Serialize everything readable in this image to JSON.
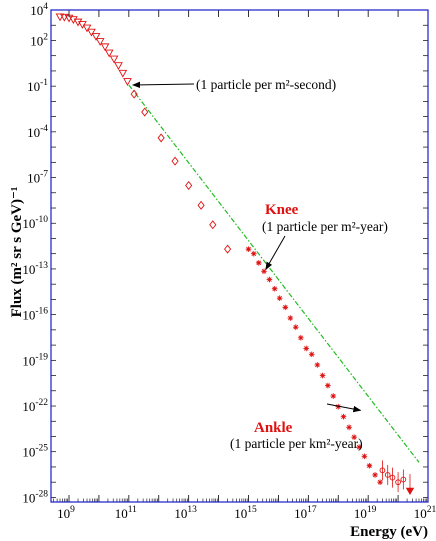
{
  "chart_data": {
    "type": "scatter",
    "title": "",
    "xlabel": "Energy (eV)",
    "ylabel": "Flux (m² sr s GeV)⁻¹",
    "x_scale": "log",
    "y_scale": "log",
    "xlim": [
      250000000.0,
      1e+21
    ],
    "ylim": [
      5e-29,
      10000.0
    ],
    "grid": false,
    "colors": {
      "frame": "#1a1acc",
      "data": "#e01010",
      "fit": "#22bb22",
      "arrow": "#000000"
    },
    "x_ticks": [
      {
        "base": "10",
        "exp": "9",
        "value": 1000000000.0
      },
      {
        "base": "10",
        "exp": "11",
        "value": 100000000000.0
      },
      {
        "base": "10",
        "exp": "13",
        "value": 10000000000000.0
      },
      {
        "base": "10",
        "exp": "15",
        "value": 1000000000000000.0
      },
      {
        "base": "10",
        "exp": "17",
        "value": 1e+17
      },
      {
        "base": "10",
        "exp": "19",
        "value": 1e+19
      },
      {
        "base": "10",
        "exp": "21",
        "value": 1e+21
      }
    ],
    "y_ticks": [
      {
        "base": "10",
        "exp": "4",
        "value": 10000.0
      },
      {
        "base": "10",
        "exp": "2",
        "value": 100.0
      },
      {
        "base": "10",
        "exp": "-1",
        "value": 0.1
      },
      {
        "base": "10",
        "exp": "-4",
        "value": 0.0001
      },
      {
        "base": "10",
        "exp": "-7",
        "value": 1e-07
      },
      {
        "base": "10",
        "exp": "-10",
        "value": 1e-10
      },
      {
        "base": "10",
        "exp": "-13",
        "value": 1e-13
      },
      {
        "base": "10",
        "exp": "-16",
        "value": 1e-16
      },
      {
        "base": "10",
        "exp": "-19",
        "value": 1e-19
      },
      {
        "base": "10",
        "exp": "-22",
        "value": 1e-22
      },
      {
        "base": "10",
        "exp": "-25",
        "value": 1e-25
      },
      {
        "base": "10",
        "exp": "-28",
        "value": 1e-28
      }
    ],
    "fit_line": {
      "x": [
        100000000000.0,
        5e+20
      ],
      "y": [
        0.12,
        2e-26
      ]
    },
    "series": [
      {
        "marker": "triangle-down",
        "x": [
          500000000.0,
          700000000.0,
          1000000000.0,
          1400000000.0,
          2000000000.0,
          2800000000.0,
          4000000000.0,
          5600000000.0,
          8000000000.0,
          11000000000.0,
          16000000000.0,
          22000000000.0,
          32000000000.0,
          45000000000.0,
          63000000000.0,
          90000000000.0
        ],
        "y": [
          3500,
          3300,
          2900,
          2300,
          1600,
          1100,
          650,
          350,
          180,
          85,
          38,
          15,
          6,
          2.2,
          0.7,
          0.2
        ]
      },
      {
        "marker": "diamond",
        "x": [
          150000000000.0,
          340000000000.0,
          1200000000000.0,
          3500000000000.0,
          10000000000000.0,
          26000000000000.0,
          64000000000000.0,
          200000000000000.0
        ],
        "y": [
          0.03,
          0.002,
          4e-05,
          1.2e-06,
          3e-08,
          1.5e-09,
          8e-11,
          2e-12
        ]
      },
      {
        "marker": "star",
        "x": [
          1000000000000000.0,
          1500000000000000.0,
          2200000000000000.0,
          3300000000000000.0,
          5000000000000000.0,
          7500000000000000.0,
          1.1e+16,
          1.7e+16,
          2.5e+16,
          3.8e+16,
          5.6e+16,
          8.5e+16,
          1.3e+17,
          2e+17,
          3e+17,
          4.5e+17,
          6.8e+17,
          1e+18,
          1.5e+18,
          2.3e+18,
          3.4e+18,
          5e+18,
          7.5e+18,
          1.1e+19,
          1.7e+19,
          2.5e+19
        ],
        "y": [
          2e-12,
          1e-12,
          2.5e-13,
          7e-14,
          2e-14,
          5e-15,
          1.2e-15,
          3e-16,
          6e-17,
          1.5e-17,
          3e-18,
          6e-19,
          2.5e-19,
          5e-20,
          1e-20,
          2.2e-21,
          4.5e-22,
          9e-23,
          2e-23,
          4e-24,
          9e-25,
          2e-25,
          5e-26,
          1.2e-26,
          3e-27,
          1e-27
        ]
      },
      {
        "marker": "circle",
        "x": [
          3e+19,
          4.5e+19,
          6.5e+19,
          1e+20,
          1.5e+20
        ],
        "y": [
          6e-27,
          3e-27,
          2e-27,
          1e-27,
          1.5e-27
        ]
      },
      {
        "marker": "triangle-down-filled",
        "x": [
          2.5e+20
        ],
        "y": [
          3e-28
        ]
      }
    ],
    "annotations": [
      {
        "text": "(1 particle per m²-second)",
        "target": {
          "x": 100000000000.0,
          "y": 0.12
        }
      },
      {
        "title": "Knee",
        "text": "(1 particle per m²-year)",
        "target": {
          "x": 3000000000000000.0,
          "y": 8e-14
        }
      },
      {
        "title": "Ankle",
        "text": "(1 particle per km²-year)",
        "target": {
          "x": 6e+18,
          "y": 6e-23
        }
      }
    ]
  }
}
